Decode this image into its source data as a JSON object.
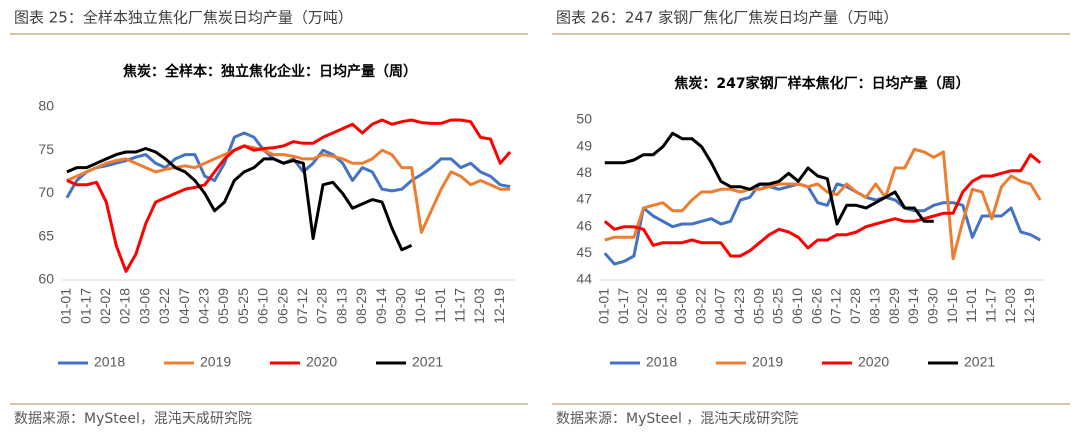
{
  "captions": [
    {
      "title": "图表 25：全样本独立焦化厂焦炭日均产量（万吨）",
      "source": "数据来源：MySteel，混沌天成研究院"
    },
    {
      "title": "图表 26：247 家钢厂焦化厂焦炭日均产量（万吨）",
      "source": "数据来源：MySteel ，混沌天成研究院"
    }
  ],
  "chart_data": [
    {
      "type": "line",
      "title": "焦炭：全样本：独立焦化企业：日均产量（周）",
      "categories": [
        "01-01",
        null,
        "01-17",
        null,
        "02-02",
        null,
        "02-18",
        null,
        "03-06",
        null,
        "03-22",
        null,
        "04-07",
        null,
        "04-23",
        null,
        "05-09",
        null,
        "05-25",
        null,
        "06-10",
        null,
        "06-26",
        null,
        "07-12",
        null,
        "07-28",
        null,
        "08-13",
        null,
        "08-29",
        null,
        "09-14",
        null,
        "09-30",
        null,
        "10-16",
        null,
        "11-01",
        null,
        "11-17",
        null,
        "12-03",
        null,
        "12-19",
        null
      ],
      "ylim": [
        60,
        80
      ],
      "yticks": [
        60,
        65,
        70,
        75,
        80
      ],
      "series": [
        {
          "name": "2018",
          "color": "#4472c4",
          "values": [
            69.5,
            71.5,
            72.5,
            73,
            73.2,
            73.5,
            73.8,
            74.2,
            74.5,
            73.5,
            73,
            74,
            74.5,
            74.5,
            72,
            71.5,
            73.5,
            76.5,
            77,
            76.5,
            75,
            74,
            73.5,
            74,
            72.5,
            73.5,
            75,
            74.5,
            73.5,
            71.5,
            73,
            72.5,
            70.5,
            70.3,
            70.5,
            71.5,
            72.2,
            73,
            74,
            74,
            73,
            73.5,
            72.5,
            72,
            71,
            70.8
          ]
        },
        {
          "name": "2019",
          "color": "#ed7d31",
          "values": [
            71.5,
            72,
            72.5,
            73,
            73.5,
            73.8,
            74,
            73.5,
            73,
            72.5,
            72.8,
            73,
            73.2,
            73,
            73.5,
            74,
            74.5,
            75,
            75.5,
            75.3,
            75,
            74.5,
            74.5,
            74.3,
            74,
            74,
            74.5,
            74.3,
            74,
            73.5,
            73.5,
            74,
            75,
            74.5,
            73,
            73,
            65.5,
            68,
            70.5,
            72.5,
            72,
            71,
            71.5,
            71,
            70.5,
            70.5
          ]
        },
        {
          "name": "2020",
          "color": "#ff0000",
          "values": [
            71.5,
            71,
            71,
            71.3,
            69,
            64,
            61,
            63,
            66.5,
            69,
            69.5,
            70,
            70.5,
            70.7,
            71,
            72.5,
            74,
            75,
            75.5,
            75,
            75.2,
            75.3,
            75.5,
            76,
            75.8,
            75.8,
            76.5,
            77,
            77.5,
            78,
            77,
            78,
            78.5,
            78,
            78.3,
            78.5,
            78.2,
            78.1,
            78.1,
            78.5,
            78.5,
            78.3,
            76.5,
            76.3,
            73.5,
            74.8
          ]
        },
        {
          "name": "2021",
          "color": "#000000",
          "values": [
            72.5,
            73,
            73,
            73.5,
            74,
            74.5,
            74.8,
            74.8,
            75.2,
            74.8,
            74,
            73,
            72.5,
            71.5,
            70,
            68,
            69,
            71.5,
            72.5,
            73,
            74,
            74,
            73.5,
            73.8,
            73.5,
            64.8,
            71,
            71.3,
            70,
            68.3,
            68.8,
            69.3,
            69,
            66,
            63.5,
            64,
            null,
            null,
            null,
            null,
            null,
            null,
            null,
            null,
            null,
            null
          ]
        }
      ]
    },
    {
      "type": "line",
      "title": "焦炭：247家钢厂样本焦化厂：日均产量（周）",
      "categories": [
        "01-01",
        null,
        "01-17",
        null,
        "02-02",
        null,
        "02-18",
        null,
        "03-06",
        null,
        "03-22",
        null,
        "04-07",
        null,
        "04-23",
        null,
        "05-09",
        null,
        "05-25",
        null,
        "06-10",
        null,
        "06-26",
        null,
        "07-12",
        null,
        "07-28",
        null,
        "08-13",
        null,
        "08-29",
        null,
        "09-14",
        null,
        "09-30",
        null,
        "10-16",
        null,
        "11-01",
        null,
        "11-17",
        null,
        "12-03",
        null,
        "12-19",
        null
      ],
      "ylim": [
        44,
        50
      ],
      "yticks": [
        44,
        45,
        46,
        47,
        48,
        49,
        50
      ],
      "series": [
        {
          "name": "2018",
          "color": "#4472c4",
          "values": [
            45,
            44.6,
            44.7,
            44.9,
            46.7,
            46.4,
            46.2,
            46,
            46.1,
            46.1,
            46.2,
            46.3,
            46.1,
            46.2,
            47,
            47.1,
            47.6,
            47.5,
            47.4,
            47.5,
            47.6,
            47.5,
            46.9,
            46.8,
            47.6,
            47.5,
            47.3,
            47.1,
            47,
            47.1,
            47,
            46.7,
            46.6,
            46.6,
            46.8,
            46.9,
            46.9,
            46.8,
            45.6,
            46.4,
            46.4,
            46.4,
            46.7,
            45.8,
            45.7,
            45.5
          ]
        },
        {
          "name": "2019",
          "color": "#ed7d31",
          "values": [
            45.5,
            45.6,
            45.6,
            45.6,
            46.7,
            46.8,
            46.9,
            46.6,
            46.6,
            47,
            47.3,
            47.3,
            47.4,
            47.4,
            47.3,
            47.4,
            47.4,
            47.5,
            47.6,
            47.6,
            47.6,
            47.5,
            47.6,
            47.3,
            47.2,
            47.6,
            47.3,
            47.1,
            47.6,
            47.1,
            48.2,
            48.2,
            48.9,
            48.8,
            48.6,
            48.8,
            44.8,
            46.2,
            47.4,
            47.3,
            46.3,
            47.5,
            47.9,
            47.7,
            47.6,
            47
          ]
        },
        {
          "name": "2020",
          "color": "#ff0000",
          "values": [
            46.2,
            45.9,
            46,
            46,
            45.9,
            45.3,
            45.4,
            45.4,
            45.4,
            45.5,
            45.4,
            45.4,
            45.4,
            44.9,
            44.9,
            45.1,
            45.4,
            45.7,
            45.9,
            45.8,
            45.6,
            45.2,
            45.5,
            45.5,
            45.7,
            45.7,
            45.8,
            46,
            46.1,
            46.2,
            46.3,
            46.2,
            46.2,
            46.3,
            46.4,
            46.5,
            46.5,
            47.3,
            47.7,
            47.9,
            47.9,
            48,
            48.1,
            48.1,
            48.7,
            48.4
          ]
        },
        {
          "name": "2021",
          "color": "#000000",
          "values": [
            48.4,
            48.4,
            48.4,
            48.5,
            48.7,
            48.7,
            49,
            49.5,
            49.3,
            49.3,
            49,
            48.4,
            47.7,
            47.5,
            47.5,
            47.4,
            47.6,
            47.6,
            47.7,
            48,
            47.7,
            48.2,
            47.9,
            47.8,
            46.1,
            46.8,
            46.8,
            46.7,
            46.9,
            47.1,
            47.3,
            46.7,
            46.7,
            46.2,
            46.2,
            null,
            null,
            null,
            null,
            null,
            null,
            null,
            null,
            null,
            null,
            null
          ]
        }
      ]
    }
  ]
}
